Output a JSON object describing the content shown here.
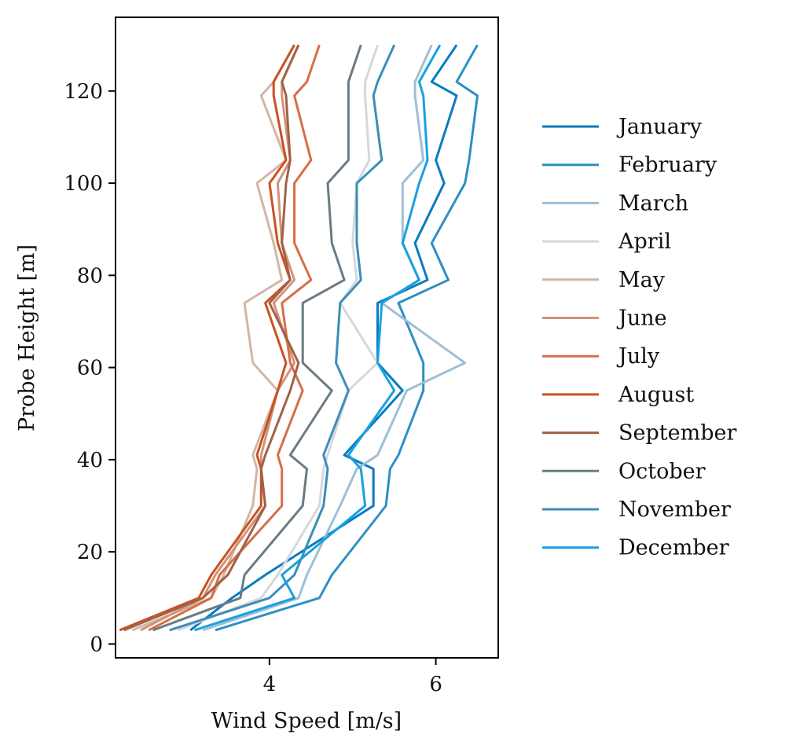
{
  "chart_data": {
    "type": "line",
    "title": "",
    "xlabel": "Wind Speed [m/s]",
    "ylabel": "Probe Height [m]",
    "xlim": [
      2.15,
      6.75
    ],
    "ylim": [
      -3,
      136
    ],
    "xticks": [
      4,
      6
    ],
    "xtick_labels": [
      "4",
      "6"
    ],
    "yticks": [
      0,
      20,
      40,
      60,
      80,
      100,
      120
    ],
    "ytick_labels": [
      "0",
      "20",
      "40",
      "60",
      "80",
      "100",
      "120"
    ],
    "grid": false,
    "legend_position": "outside-right",
    "heights": [
      3,
      10,
      15,
      30,
      38,
      41,
      55,
      61,
      74,
      79,
      87,
      100,
      105,
      119,
      122,
      130
    ],
    "series": [
      {
        "name": "January",
        "color": "#0a7bc1",
        "x": [
          3.05,
          3.55,
          3.95,
          5.25,
          5.25,
          4.9,
          5.6,
          5.3,
          5.3,
          5.9,
          5.75,
          6.1,
          6.0,
          6.25,
          5.95,
          6.25
        ]
      },
      {
        "name": "February",
        "color": "#2e8fc4",
        "x": [
          3.35,
          4.6,
          4.75,
          5.4,
          5.45,
          5.55,
          5.85,
          5.85,
          5.55,
          6.15,
          5.95,
          6.35,
          6.4,
          6.5,
          6.25,
          6.5
        ]
      },
      {
        "name": "March",
        "color": "#9ebfd6",
        "x": [
          3.2,
          4.35,
          4.45,
          4.85,
          5.05,
          5.3,
          5.65,
          6.35,
          5.35,
          5.8,
          5.6,
          5.6,
          5.85,
          5.75,
          5.75,
          5.95
        ]
      },
      {
        "name": "April",
        "color": "#d4d8dc",
        "x": [
          2.9,
          3.9,
          4.1,
          4.6,
          4.65,
          4.7,
          4.95,
          5.3,
          4.85,
          5.05,
          5.0,
          5.05,
          5.2,
          5.15,
          5.15,
          5.3
        ]
      },
      {
        "name": "May",
        "color": "#d4b5a6",
        "x": [
          2.35,
          3.3,
          3.45,
          3.8,
          3.85,
          3.8,
          4.1,
          3.8,
          3.7,
          4.15,
          4.05,
          3.85,
          4.2,
          3.9,
          4.05,
          4.3
        ]
      },
      {
        "name": "June",
        "color": "#d4927a",
        "x": [
          2.45,
          3.2,
          3.35,
          3.95,
          3.9,
          3.9,
          4.1,
          4.3,
          4.05,
          4.3,
          4.15,
          4.1,
          4.25,
          4.15,
          4.15,
          4.35
        ]
      },
      {
        "name": "July",
        "color": "#d66e48",
        "x": [
          2.55,
          3.3,
          3.4,
          4.15,
          4.15,
          4.1,
          4.4,
          4.25,
          4.15,
          4.5,
          4.3,
          4.3,
          4.5,
          4.3,
          4.45,
          4.6
        ]
      },
      {
        "name": "August",
        "color": "#c95220",
        "x": [
          2.2,
          3.15,
          3.3,
          3.9,
          3.9,
          3.85,
          4.1,
          4.2,
          3.95,
          4.25,
          4.1,
          4.0,
          4.2,
          4.05,
          4.05,
          4.3
        ]
      },
      {
        "name": "September",
        "color": "#a06247",
        "x": [
          2.25,
          3.2,
          3.5,
          3.95,
          3.9,
          3.95,
          4.25,
          4.35,
          4.0,
          4.25,
          4.15,
          4.2,
          4.25,
          4.2,
          4.15,
          4.35
        ]
      },
      {
        "name": "October",
        "color": "#6a7b84",
        "x": [
          2.6,
          3.65,
          3.7,
          4.4,
          4.45,
          4.25,
          4.75,
          4.4,
          4.4,
          4.9,
          4.75,
          4.7,
          4.95,
          4.95,
          4.95,
          5.1
        ]
      },
      {
        "name": "November",
        "color": "#3a8fb8",
        "x": [
          2.8,
          4.0,
          4.3,
          4.65,
          4.7,
          4.65,
          4.95,
          4.8,
          4.85,
          5.1,
          5.05,
          5.05,
          5.35,
          5.25,
          5.3,
          5.5
        ]
      },
      {
        "name": "December",
        "color": "#17a1e0",
        "x": [
          3.1,
          4.3,
          4.15,
          5.15,
          5.1,
          4.95,
          5.5,
          5.3,
          5.35,
          5.8,
          5.6,
          5.8,
          5.9,
          5.85,
          5.8,
          6.05
        ]
      }
    ]
  }
}
